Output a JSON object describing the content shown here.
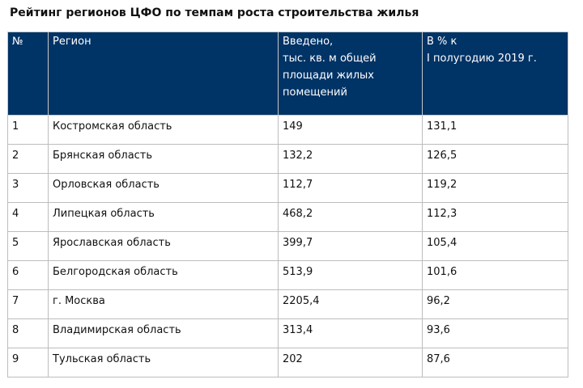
{
  "title": "Рейтинг регионов ЦФО по темпам роста строительства жилья",
  "header": {
    "num": "№",
    "region": "Регион",
    "built_lines": [
      "Введено,",
      "тыс. кв. м общей",
      "площади жилых",
      "помещений"
    ],
    "pct_lines": [
      "В % к",
      "I полугодию 2019 г."
    ]
  },
  "rows": [
    {
      "num": "1",
      "region": "Костромская область",
      "built": "149",
      "pct": "131,1"
    },
    {
      "num": "2",
      "region": "Брянская область",
      "built": "132,2",
      "pct": "126,5"
    },
    {
      "num": "3",
      "region": "Орловская область",
      "built": "112,7",
      "pct": "119,2"
    },
    {
      "num": "4",
      "region": "Липецкая область",
      "built": "468,2",
      "pct": "112,3"
    },
    {
      "num": "5",
      "region": "Ярославская область",
      "built": "399,7",
      "pct": "105,4"
    },
    {
      "num": "6",
      "region": "Белгородская область",
      "built": "513,9",
      "pct": "101,6"
    },
    {
      "num": "7",
      "region": "г. Москва",
      "built": "2205,4",
      "pct": "96,2"
    },
    {
      "num": "8",
      "region": "Владимирская область",
      "built": "313,4",
      "pct": "93,6"
    },
    {
      "num": "9",
      "region": "Тульская область",
      "built": "202",
      "pct": "87,6"
    }
  ],
  "colors": {
    "header_bg": "#003366",
    "header_text": "#ffffff",
    "grid": "#bdbdbd"
  }
}
